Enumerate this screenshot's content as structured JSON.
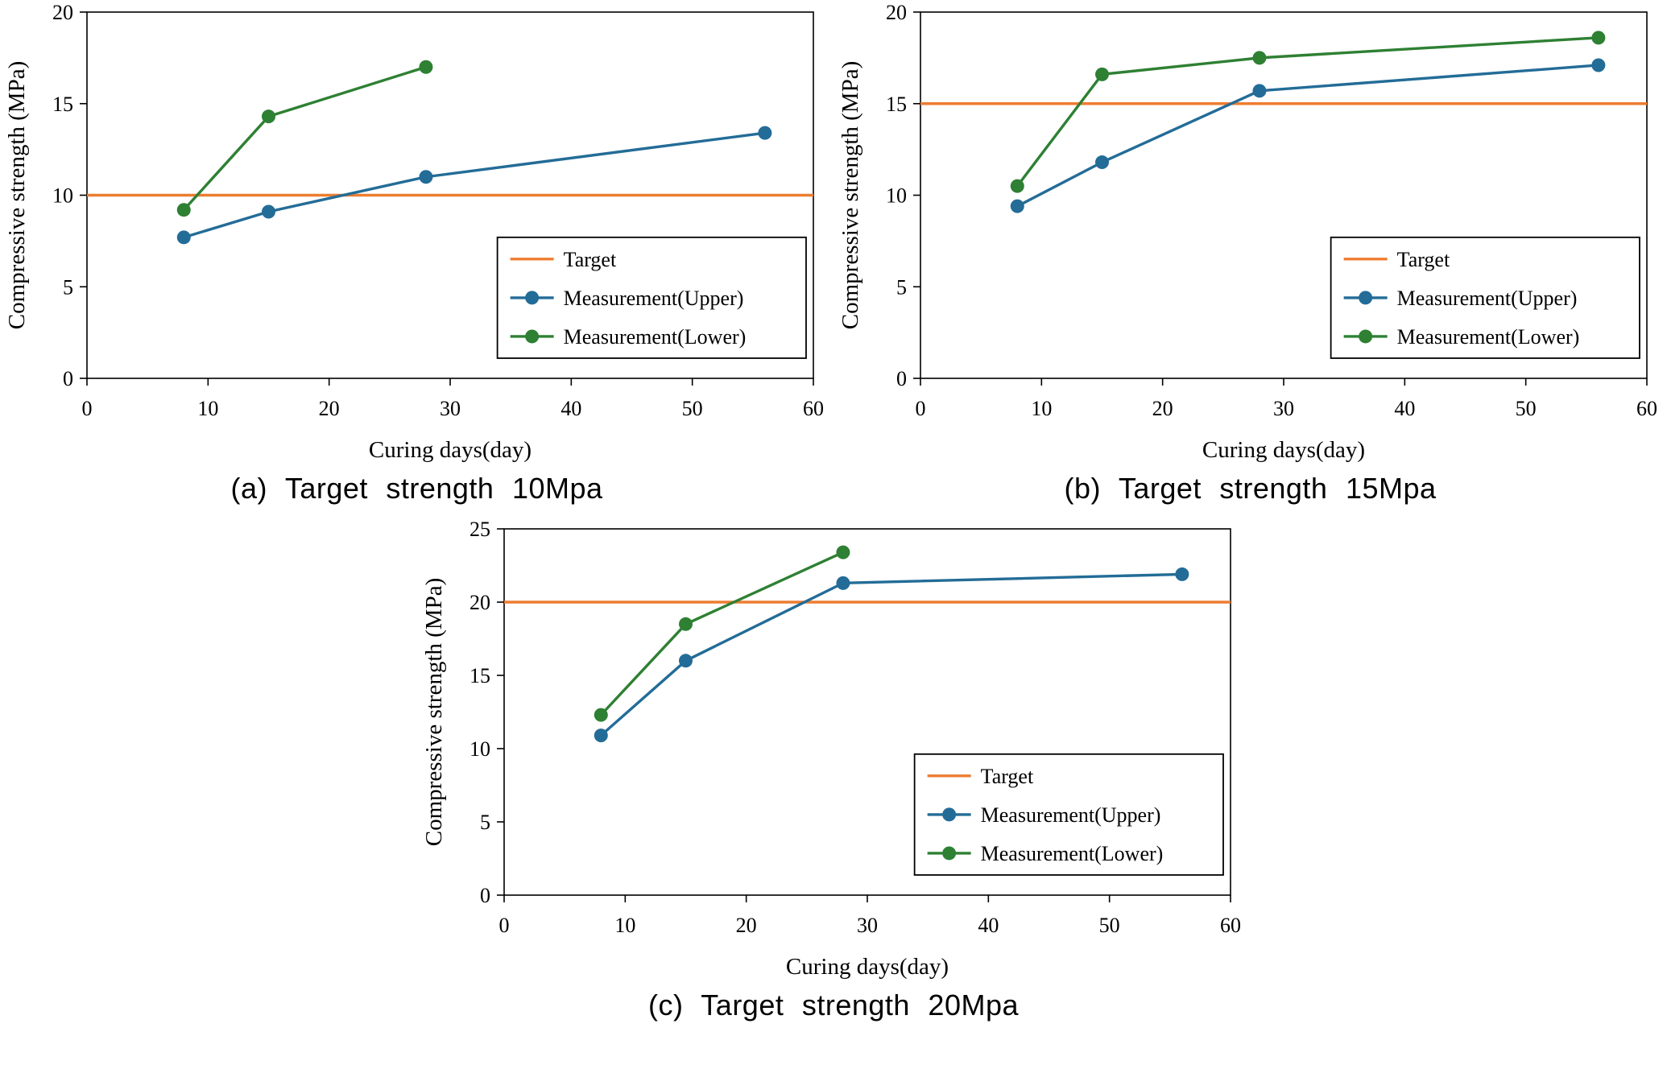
{
  "page": {
    "background": "#ffffff"
  },
  "colors": {
    "target": "#ED7D31",
    "upper": "#236C97",
    "lower": "#2E8033",
    "axis": "#000000",
    "legend_border": "#000000",
    "legend_background": "#ffffff"
  },
  "legend": {
    "items": [
      {
        "key": "target",
        "label": "Target"
      },
      {
        "key": "upper",
        "label": "Measurement(Upper)"
      },
      {
        "key": "lower",
        "label": "Measurement(Lower)"
      }
    ]
  },
  "chart_data": [
    {
      "id": "a",
      "type": "line",
      "caption": "(a) Target strength 10Mpa",
      "xlabel": "Curing days(day)",
      "ylabel": "Compressive strength (MPa)",
      "xlim": [
        0,
        60
      ],
      "xticks": [
        0,
        10,
        20,
        30,
        40,
        50,
        60
      ],
      "ylim": [
        0,
        20
      ],
      "yticks": [
        0,
        5,
        10,
        15,
        20
      ],
      "target": 10,
      "grid": false,
      "legend_position": "lower right",
      "series": [
        {
          "name": "Measurement(Upper)",
          "color_key": "upper",
          "x": [
            8,
            15,
            28,
            56
          ],
          "y": [
            7.7,
            9.1,
            11.0,
            13.4
          ]
        },
        {
          "name": "Measurement(Lower)",
          "color_key": "lower",
          "x": [
            8,
            15,
            28
          ],
          "y": [
            9.2,
            14.3,
            17.0
          ]
        }
      ]
    },
    {
      "id": "b",
      "type": "line",
      "caption": "(b) Target strength 15Mpa",
      "xlabel": "Curing days(day)",
      "ylabel": "Compressive strength (MPa)",
      "xlim": [
        0,
        60
      ],
      "xticks": [
        0,
        10,
        20,
        30,
        40,
        50,
        60
      ],
      "ylim": [
        0,
        20
      ],
      "yticks": [
        0,
        5,
        10,
        15,
        20
      ],
      "target": 15,
      "grid": false,
      "legend_position": "lower right",
      "series": [
        {
          "name": "Measurement(Upper)",
          "color_key": "upper",
          "x": [
            8,
            15,
            28,
            56
          ],
          "y": [
            9.4,
            11.8,
            15.7,
            17.1
          ]
        },
        {
          "name": "Measurement(Lower)",
          "color_key": "lower",
          "x": [
            8,
            15,
            28,
            56
          ],
          "y": [
            10.5,
            16.6,
            17.5,
            18.6
          ]
        }
      ]
    },
    {
      "id": "c",
      "type": "line",
      "caption": "(c) Target strength 20Mpa",
      "xlabel": "Curing days(day)",
      "ylabel": "Compressive strength (MPa)",
      "xlim": [
        0,
        60
      ],
      "xticks": [
        0,
        10,
        20,
        30,
        40,
        50,
        60
      ],
      "ylim": [
        0,
        25
      ],
      "yticks": [
        0,
        5,
        10,
        15,
        20,
        25
      ],
      "target": 20,
      "grid": false,
      "legend_position": "lower right",
      "series": [
        {
          "name": "Measurement(Upper)",
          "color_key": "upper",
          "x": [
            8,
            15,
            28,
            56
          ],
          "y": [
            10.9,
            16.0,
            21.3,
            21.9
          ]
        },
        {
          "name": "Measurement(Lower)",
          "color_key": "lower",
          "x": [
            8,
            15,
            28
          ],
          "y": [
            12.3,
            18.5,
            23.4
          ]
        }
      ]
    }
  ]
}
